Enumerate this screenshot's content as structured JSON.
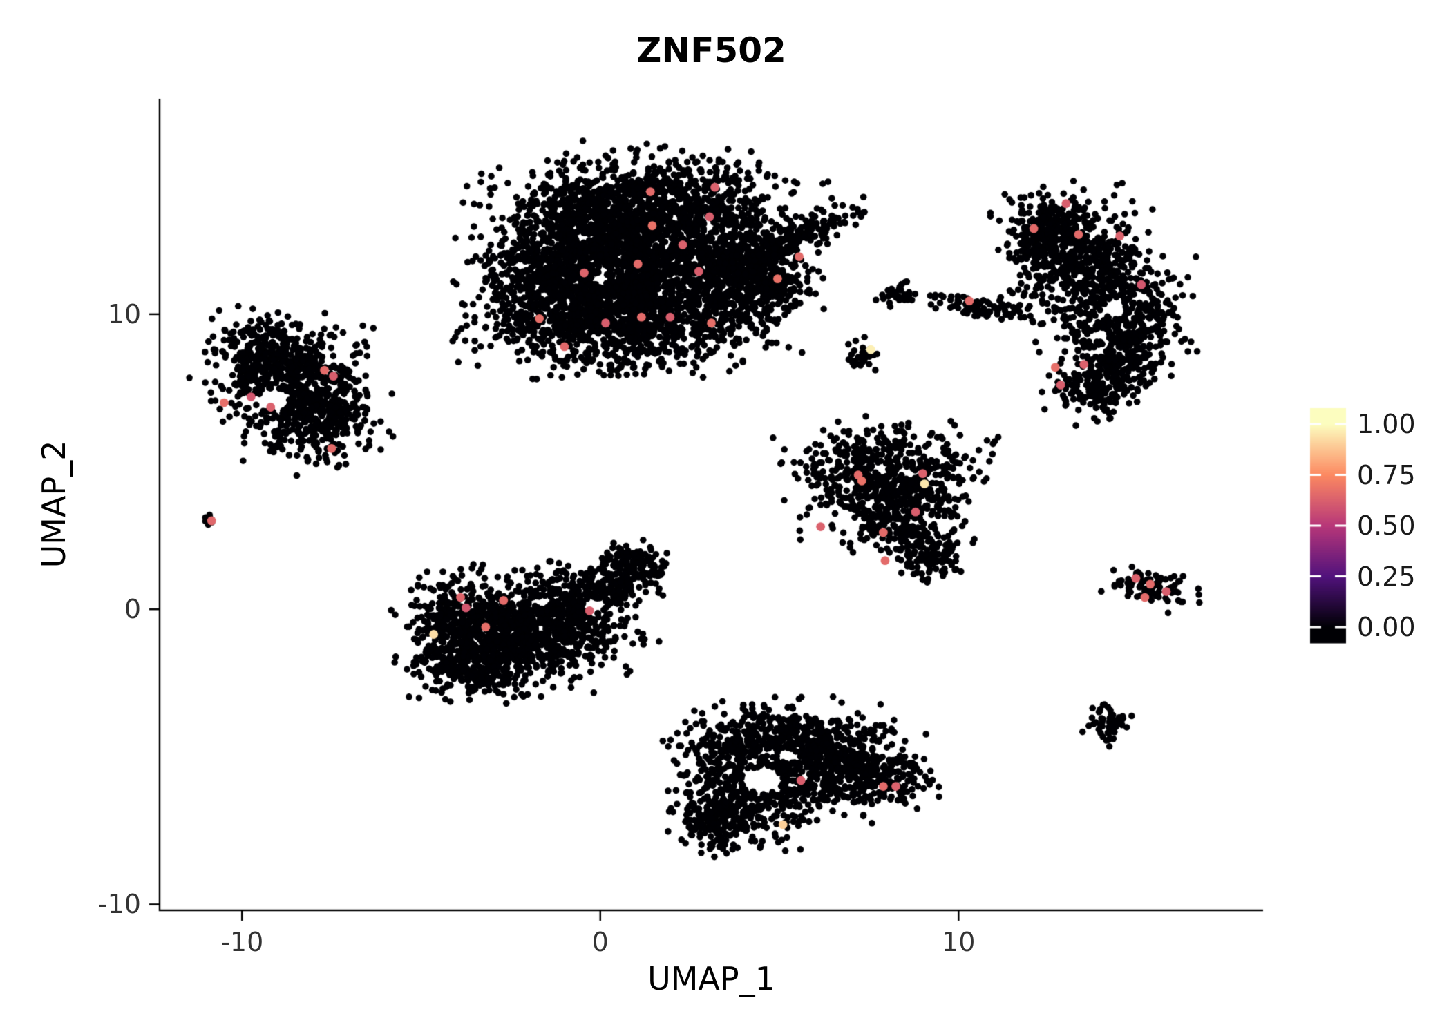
{
  "chart_data": {
    "type": "scatter",
    "title": "ZNF502",
    "x_axis": {
      "label": "UMAP_1",
      "range": [
        -12.3,
        18.5
      ],
      "ticks": [
        {
          "value": -10,
          "label": "-10"
        },
        {
          "value": 0,
          "label": "0"
        },
        {
          "value": 10,
          "label": "10"
        }
      ]
    },
    "y_axis": {
      "label": "UMAP_2",
      "range": [
        -10.2,
        17.3
      ],
      "ticks": [
        {
          "value": -10,
          "label": "-10"
        },
        {
          "value": 0,
          "label": "0"
        },
        {
          "value": 10,
          "label": "10"
        }
      ]
    },
    "legend": {
      "colormap": "magma",
      "stops": [
        {
          "v": 0.0,
          "c": "#000004"
        },
        {
          "v": 0.25,
          "c": "#51127C"
        },
        {
          "v": 0.5,
          "c": "#B73779"
        },
        {
          "v": 0.75,
          "c": "#FC8961"
        },
        {
          "v": 1.0,
          "c": "#FCFDBF"
        }
      ],
      "ticks": [
        {
          "value": 1.0,
          "label": "1.00"
        },
        {
          "value": 0.75,
          "label": "0.75"
        },
        {
          "value": 0.5,
          "label": "0.50"
        },
        {
          "value": 0.25,
          "label": "0.25"
        },
        {
          "value": 0.0,
          "label": "0.00"
        }
      ]
    },
    "style": {
      "background": "#FFFFFF",
      "point_color_zero": "#000004",
      "point_radius": 4.8,
      "highlight_radius": 6.4,
      "axis_color": "#000000",
      "tick_text_color": "#333333"
    },
    "seed": 42,
    "clusters": [
      {
        "name": "top-center",
        "blobs": [
          [
            1.2,
            11.9,
            1.9,
            1.45,
            0,
            2000
          ],
          [
            -1.2,
            10.8,
            1.1,
            1.1,
            0,
            600
          ],
          [
            0.6,
            9.6,
            1.6,
            0.75,
            0,
            500
          ],
          [
            -0.4,
            13.3,
            1.0,
            0.8,
            0,
            350
          ],
          [
            2.2,
            14.0,
            1.2,
            0.6,
            0,
            300
          ],
          [
            3.7,
            11.2,
            0.9,
            1.0,
            0,
            400
          ],
          [
            5.3,
            12.5,
            1.05,
            0.26,
            28,
            220
          ],
          [
            4.7,
            10.9,
            0.5,
            0.45,
            0,
            120
          ]
        ],
        "holes": [
          [
            0.0,
            11.2,
            0.22,
            0.2
          ],
          [
            -0.5,
            12.6,
            0.18,
            0.16
          ]
        ]
      },
      {
        "name": "left",
        "blobs": [
          [
            -8.8,
            7.9,
            1.0,
            0.85,
            0,
            450
          ],
          [
            -8.0,
            6.3,
            0.85,
            0.65,
            0,
            250
          ],
          [
            -9.5,
            8.8,
            0.6,
            0.55,
            0,
            140
          ],
          [
            -7.6,
            7.3,
            0.5,
            0.8,
            0,
            120
          ]
        ],
        "holes": [
          [
            -9.15,
            7.1,
            0.42,
            0.38
          ]
        ]
      },
      {
        "name": "far-left-dot",
        "blobs": [
          [
            -10.87,
            3.0,
            0.1,
            0.1,
            0,
            10
          ]
        ],
        "holes": []
      },
      {
        "name": "bottom-left",
        "blobs": [
          [
            -2.7,
            -0.9,
            1.25,
            0.85,
            0,
            850
          ],
          [
            -1.1,
            -0.35,
            1.0,
            0.75,
            0,
            420
          ],
          [
            0.3,
            0.8,
            0.8,
            0.4,
            25,
            220
          ],
          [
            0.85,
            1.6,
            0.4,
            0.3,
            0,
            80
          ],
          [
            -3.6,
            -2.0,
            0.7,
            0.45,
            0,
            170
          ],
          [
            -4.3,
            -0.4,
            0.45,
            0.6,
            0,
            140
          ]
        ],
        "holes": [
          [
            -0.2,
            0.1,
            0.3,
            0.25
          ],
          [
            -1.6,
            0.25,
            0.22,
            0.2
          ]
        ]
      },
      {
        "name": "mid-right",
        "blobs": [
          [
            7.9,
            4.9,
            1.25,
            0.6,
            0,
            350
          ],
          [
            8.0,
            3.8,
            1.05,
            0.55,
            0,
            300
          ],
          [
            8.5,
            2.7,
            0.7,
            0.5,
            0,
            170
          ],
          [
            9.3,
            1.7,
            0.4,
            0.38,
            0,
            80
          ]
        ],
        "holes": [
          [
            8.6,
            4.6,
            0.2,
            0.18
          ]
        ]
      },
      {
        "name": "bottom-center",
        "blobs": [
          [
            5.0,
            -4.5,
            1.3,
            0.65,
            0,
            450
          ],
          [
            6.4,
            -5.4,
            1.0,
            0.75,
            0,
            380
          ],
          [
            4.3,
            -6.2,
            1.0,
            0.8,
            0,
            380
          ],
          [
            3.3,
            -7.2,
            0.6,
            0.5,
            0,
            140
          ],
          [
            7.9,
            -5.7,
            0.65,
            0.45,
            0,
            150
          ]
        ],
        "holes": [
          [
            4.55,
            -5.8,
            0.5,
            0.45
          ],
          [
            5.3,
            -5.0,
            0.25,
            0.2
          ]
        ]
      },
      {
        "name": "right-tall",
        "blobs": [
          [
            12.9,
            12.9,
            0.9,
            0.6,
            0,
            260
          ],
          [
            13.4,
            11.7,
            0.9,
            0.7,
            0,
            300
          ],
          [
            14.3,
            10.3,
            0.95,
            0.8,
            0,
            340
          ],
          [
            14.5,
            8.9,
            0.8,
            0.7,
            0,
            260
          ],
          [
            13.8,
            7.5,
            0.6,
            0.5,
            0,
            170
          ],
          [
            12.3,
            12.4,
            0.4,
            0.5,
            0,
            80
          ]
        ],
        "holes": [
          [
            14.35,
            10.15,
            0.3,
            0.3
          ],
          [
            13.9,
            9.3,
            0.22,
            0.2
          ]
        ]
      },
      {
        "name": "mid-small-a",
        "blobs": [
          [
            8.35,
            10.75,
            0.28,
            0.22,
            0,
            35
          ]
        ],
        "holes": []
      },
      {
        "name": "mid-streak",
        "blobs": [
          [
            10.6,
            10.25,
            0.7,
            0.16,
            -10,
            85
          ]
        ],
        "holes": []
      },
      {
        "name": "mid-small-b",
        "blobs": [
          [
            7.25,
            8.7,
            0.2,
            0.32,
            15,
            30
          ]
        ],
        "holes": []
      },
      {
        "name": "right-small",
        "blobs": [
          [
            15.3,
            0.8,
            0.55,
            0.32,
            -14,
            85
          ]
        ],
        "holes": []
      },
      {
        "name": "bottom-right-dot",
        "blobs": [
          [
            14.2,
            -3.9,
            0.3,
            0.33,
            0,
            55
          ]
        ],
        "holes": []
      }
    ],
    "highlights": [
      [
        1.4,
        14.15,
        0.66
      ],
      [
        3.2,
        14.3,
        0.63
      ],
      [
        1.45,
        13.0,
        0.68
      ],
      [
        3.05,
        13.3,
        0.62
      ],
      [
        5.55,
        11.95,
        0.66
      ],
      [
        4.95,
        11.2,
        0.68
      ],
      [
        2.75,
        11.45,
        0.62
      ],
      [
        1.05,
        11.7,
        0.66
      ],
      [
        -0.45,
        11.4,
        0.64
      ],
      [
        2.3,
        12.35,
        0.63
      ],
      [
        -1.7,
        9.85,
        0.67
      ],
      [
        0.15,
        9.7,
        0.62
      ],
      [
        1.15,
        9.9,
        0.66
      ],
      [
        1.95,
        9.9,
        0.62
      ],
      [
        3.1,
        9.7,
        0.67
      ],
      [
        -1.0,
        8.9,
        0.65
      ],
      [
        -7.7,
        8.1,
        0.66
      ],
      [
        -7.45,
        7.9,
        0.62
      ],
      [
        -10.5,
        7.0,
        0.67
      ],
      [
        -9.2,
        6.85,
        0.63
      ],
      [
        -9.75,
        7.2,
        0.6
      ],
      [
        -7.5,
        5.45,
        0.66
      ],
      [
        -10.85,
        3.0,
        0.65
      ],
      [
        -3.9,
        0.4,
        0.64
      ],
      [
        -2.7,
        0.3,
        0.66
      ],
      [
        -0.3,
        -0.05,
        0.62
      ],
      [
        -3.2,
        -0.6,
        0.67
      ],
      [
        -3.75,
        0.05,
        0.6
      ],
      [
        -4.65,
        -0.85,
        0.93
      ],
      [
        7.2,
        4.55,
        0.66
      ],
      [
        7.3,
        4.35,
        0.68
      ],
      [
        9.0,
        4.6,
        0.63
      ],
      [
        9.05,
        4.25,
        0.95
      ],
      [
        8.8,
        3.3,
        0.62
      ],
      [
        7.9,
        2.6,
        0.66
      ],
      [
        6.15,
        2.8,
        0.63
      ],
      [
        7.95,
        1.65,
        0.66
      ],
      [
        5.6,
        -5.8,
        0.62
      ],
      [
        7.9,
        -6.0,
        0.66
      ],
      [
        8.25,
        -6.0,
        0.63
      ],
      [
        5.1,
        -7.3,
        0.9
      ],
      [
        12.1,
        12.9,
        0.66
      ],
      [
        13.0,
        13.75,
        0.62
      ],
      [
        13.35,
        12.7,
        0.66
      ],
      [
        14.5,
        12.65,
        0.63
      ],
      [
        15.1,
        11.0,
        0.6
      ],
      [
        12.7,
        8.2,
        0.67
      ],
      [
        13.5,
        8.3,
        0.63
      ],
      [
        12.85,
        7.6,
        0.62
      ],
      [
        10.3,
        10.45,
        0.66
      ],
      [
        7.55,
        8.8,
        0.97
      ],
      [
        14.95,
        1.05,
        0.63
      ],
      [
        15.35,
        0.85,
        0.66
      ],
      [
        15.8,
        0.6,
        0.62
      ],
      [
        15.2,
        0.4,
        0.66
      ]
    ]
  }
}
